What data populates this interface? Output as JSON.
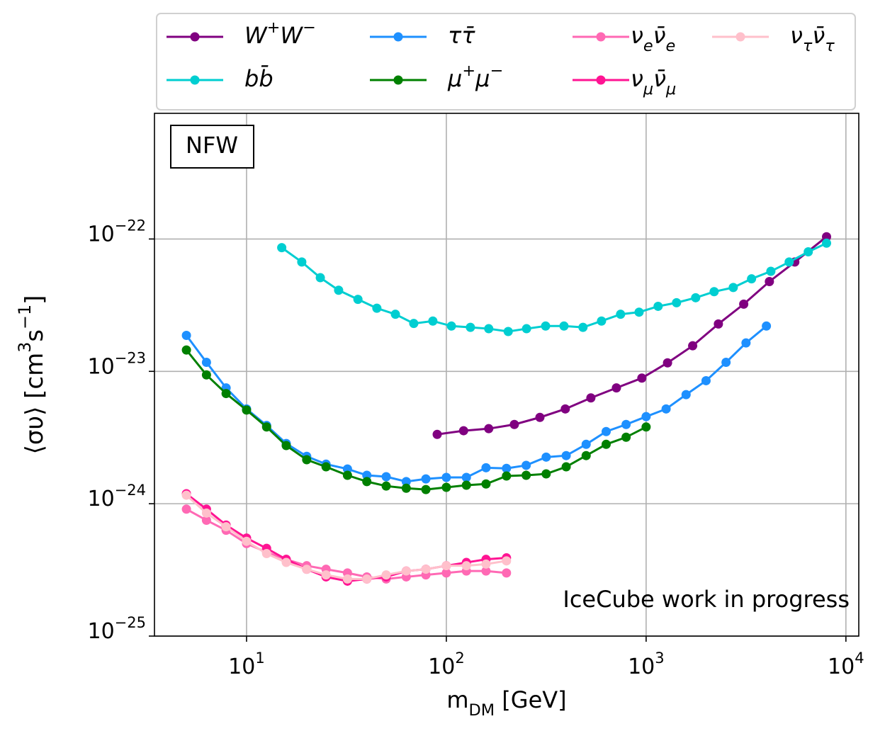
{
  "chart_data": {
    "type": "line",
    "xlabel": "m_{DM} [GeV]",
    "ylabel": "⟨συ⟩ [cm^{3}s^{−1}]",
    "xscale": "log",
    "yscale": "log",
    "grid": true,
    "legend": "upper center",
    "xlim": [
      3.46,
      11600
    ],
    "ylim": [
      1e-25,
      8.9e-22
    ],
    "xticks": [
      {
        "value": 10,
        "label": "10^{1}"
      },
      {
        "value": 100,
        "label": "10^{2}"
      },
      {
        "value": 1000,
        "label": "10^{3}"
      },
      {
        "value": 10000,
        "label": "10^{4}"
      }
    ],
    "yticks": [
      {
        "value": 1e-25,
        "label": "10^{−25}"
      },
      {
        "value": 1e-24,
        "label": "10^{−24}"
      },
      {
        "value": 1e-23,
        "label": "10^{−23}"
      },
      {
        "value": 1e-22,
        "label": "10^{−22}"
      }
    ],
    "annotations": [
      {
        "text": "NFW"
      },
      {
        "text": "IceCube work in progress",
        "color": "#ff0000"
      }
    ],
    "series": [
      {
        "name": "W^{+}W^{−}",
        "color": "#800080",
        "x": [
          90,
          122,
          163,
          219,
          294,
          394,
          529,
          710,
          952,
          1280,
          1710,
          2300,
          3080,
          4140,
          5550,
          8000
        ],
        "values": [
          3.34e-24,
          3.56e-24,
          3.69e-24,
          3.97e-24,
          4.49e-24,
          5.2e-24,
          6.3e-24,
          7.5e-24,
          8.9e-24,
          1.16e-23,
          1.56e-23,
          2.28e-23,
          3.22e-23,
          4.77e-23,
          6.7e-23,
          1.04e-22
        ]
      },
      {
        "name": "bb̄",
        "color": "#00ced1",
        "x": [
          15,
          18.9,
          23.4,
          28.9,
          36.1,
          44.9,
          55.6,
          68.7,
          85.6,
          106,
          132,
          163,
          204,
          252,
          314,
          388,
          483,
          598,
          745,
          922,
          1148,
          1420,
          1770,
          2190,
          2730,
          3370,
          4210,
          5200,
          6480,
          8000
        ],
        "values": [
          8.6e-23,
          6.7e-23,
          5.1e-23,
          4.1e-23,
          3.5e-23,
          3e-23,
          2.7e-23,
          2.3e-23,
          2.4e-23,
          2.2e-23,
          2.15e-23,
          2.1e-23,
          2e-23,
          2.1e-23,
          2.2e-23,
          2.2e-23,
          2.15e-23,
          2.4e-23,
          2.7e-23,
          2.8e-23,
          3.1e-23,
          3.3e-23,
          3.6e-23,
          4e-23,
          4.3e-23,
          5e-23,
          5.7e-23,
          6.7e-23,
          8e-23,
          9.3e-23
        ]
      },
      {
        "name": "ττ̄",
        "color": "#1e90ff",
        "x": [
          5,
          6.3,
          7.9,
          10,
          12.6,
          15.8,
          20,
          25,
          32,
          40,
          50,
          63,
          79,
          100,
          126,
          158,
          200,
          251,
          316,
          398,
          501,
          631,
          794,
          1000,
          1259,
          1585,
          1995,
          2512,
          3162,
          4000
        ],
        "values": [
          1.87e-23,
          1.17e-23,
          7.5e-24,
          5.2e-24,
          3.9e-24,
          2.85e-24,
          2.28e-24,
          1.99e-24,
          1.83e-24,
          1.64e-24,
          1.6e-24,
          1.47e-24,
          1.54e-24,
          1.58e-24,
          1.58e-24,
          1.87e-24,
          1.85e-24,
          1.95e-24,
          2.25e-24,
          2.31e-24,
          2.81e-24,
          3.51e-24,
          3.97e-24,
          4.55e-24,
          5.2e-24,
          6.67e-24,
          8.5e-24,
          1.17e-23,
          1.64e-23,
          2.2e-23
        ]
      },
      {
        "name": "μ^{+}μ^{−}",
        "color": "#008000",
        "x": [
          5,
          6.3,
          7.9,
          10,
          12.6,
          15.8,
          20,
          25,
          32,
          40,
          50,
          63,
          79,
          100,
          126,
          158,
          200,
          251,
          316,
          398,
          501,
          631,
          794,
          1000
        ],
        "values": [
          1.45e-23,
          9.4e-24,
          6.8e-24,
          5.1e-24,
          3.8e-24,
          2.75e-24,
          2.15e-24,
          1.9e-24,
          1.64e-24,
          1.47e-24,
          1.36e-24,
          1.31e-24,
          1.28e-24,
          1.33e-24,
          1.38e-24,
          1.41e-24,
          1.62e-24,
          1.64e-24,
          1.68e-24,
          1.9e-24,
          2.31e-24,
          2.81e-24,
          3.18e-24,
          3.8e-24
        ]
      },
      {
        "name": "ν_{e}ν̄_{e}",
        "color": "#ff69b4",
        "x": [
          5,
          6.3,
          7.9,
          10,
          12.6,
          15.8,
          20,
          25,
          32,
          40,
          50,
          63,
          79,
          100,
          126,
          158,
          200
        ],
        "values": [
          9.1e-25,
          7.5e-25,
          6.3e-25,
          5e-25,
          4.3e-25,
          3.8e-25,
          3.4e-25,
          3.2e-25,
          3e-25,
          2.8e-25,
          2.7e-25,
          2.8e-25,
          2.9e-25,
          3e-25,
          3.1e-25,
          3.1e-25,
          3e-25
        ]
      },
      {
        "name": "ν_{μ}ν̄_{μ}",
        "color": "#ff1493",
        "x": [
          5,
          6.3,
          7.9,
          10,
          12.6,
          15.8,
          20,
          25,
          32,
          40,
          50,
          63,
          79,
          100,
          126,
          158,
          200
        ],
        "values": [
          1.19e-24,
          9.1e-25,
          6.9e-25,
          5.5e-25,
          4.6e-25,
          3.8e-25,
          3.2e-25,
          2.8e-25,
          2.6e-25,
          2.7e-25,
          2.8e-25,
          3.1e-25,
          3.2e-25,
          3.4e-25,
          3.6e-25,
          3.8e-25,
          3.9e-25
        ]
      },
      {
        "name": "ν_{τ}ν̄_{τ}",
        "color": "#ffc0cb",
        "x": [
          5,
          6.3,
          7.9,
          10,
          12.6,
          15.8,
          20,
          25,
          32,
          40,
          50,
          63,
          79,
          100,
          126,
          158,
          200
        ],
        "values": [
          1.16e-24,
          8.5e-25,
          6.7e-25,
          5.2e-25,
          4.2e-25,
          3.6e-25,
          3.2e-25,
          2.9e-25,
          2.7e-25,
          2.7e-25,
          2.9e-25,
          3.1e-25,
          3.2e-25,
          3.4e-25,
          3.4e-25,
          3.5e-25,
          3.7e-25
        ]
      }
    ]
  }
}
